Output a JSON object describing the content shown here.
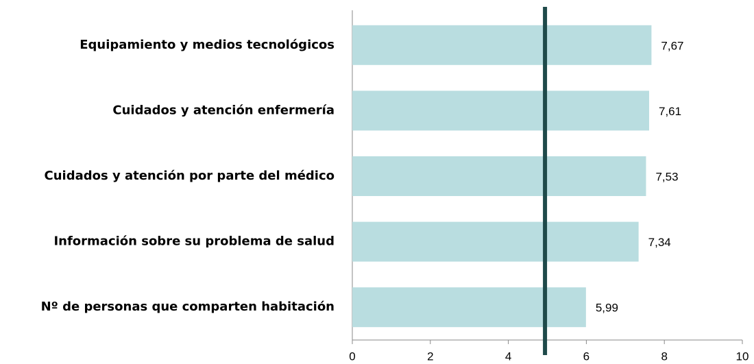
{
  "chart_data": {
    "type": "barh",
    "categories": [
      "Equipamiento y medios tecnológicos",
      "Cuidados y atención enfermería",
      "Cuidados y atención por parte del médico",
      "Información sobre su problema de salud",
      "Nº de personas que comparten habitación"
    ],
    "values": [
      7.67,
      7.61,
      7.53,
      7.34,
      5.99
    ],
    "value_labels": [
      "7,67",
      "7,61",
      "7,53",
      "7,34",
      "5,99"
    ],
    "color": "#b9dde0",
    "xlim": [
      0,
      10
    ],
    "xticks": [
      0,
      2,
      4,
      6,
      8,
      10
    ],
    "reference_line": 4.94,
    "reference_color": "#1f4a4a"
  }
}
